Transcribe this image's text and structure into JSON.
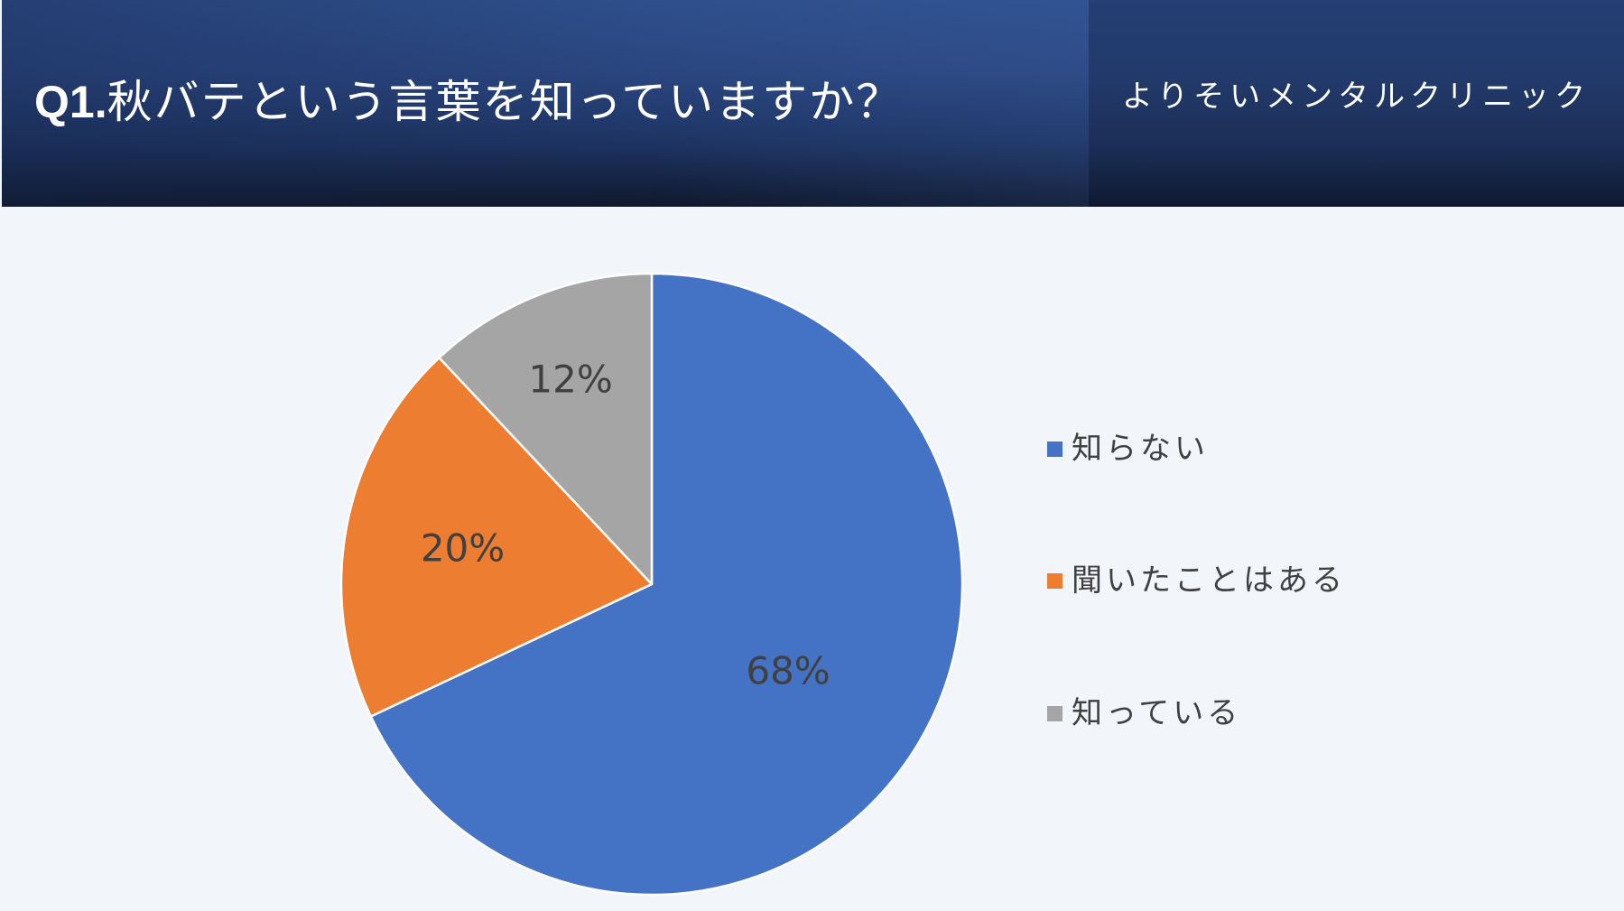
{
  "header": {
    "question_number": "Q1.",
    "question_text": "秋バテという言葉を知っていますか？",
    "clinic_name": "よりそいメンタルクリニック"
  },
  "colors": {
    "header_dark": "#1d3361",
    "background": "#f2f6fa",
    "slice_blue": "#4472c4",
    "slice_orange": "#ed7d31",
    "slice_gray": "#a5a5a5",
    "label_text": "#404040"
  },
  "chart_data": {
    "type": "pie",
    "title": "",
    "categories": [
      "知らない",
      "聞いたことはある",
      "知っている"
    ],
    "values": [
      68,
      20,
      12
    ],
    "data_labels": [
      "68%",
      "20%",
      "12%"
    ],
    "colors": [
      "#4472c4",
      "#ed7d31",
      "#a5a5a5"
    ],
    "start_angle": "12 o'clock",
    "direction": "clockwise",
    "legend_position": "right"
  }
}
